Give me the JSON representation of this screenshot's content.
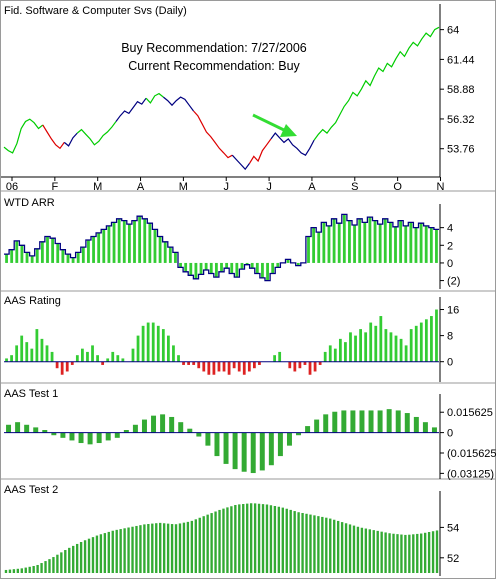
{
  "chart_data": [
    {
      "type": "line",
      "title": "Fid. Software & Computer Svs (Daily)",
      "annotations": [
        "Buy Recommendation: 7/27/2006",
        "Current Recommendation: Buy"
      ],
      "x_ticks": [
        "06",
        "F",
        "M",
        "A",
        "M",
        "J",
        "J",
        "A",
        "S",
        "O",
        "N"
      ],
      "y_ticks": [
        "64",
        "61.44",
        "58.88",
        "56.32",
        "53.76"
      ],
      "ylim": [
        51.5,
        65
      ],
      "series_colors": {
        "buy": "#00cc00",
        "sell": "#dd0000",
        "neutral": "#000080"
      },
      "series": [
        {
          "name": "",
          "values": [
            53.9,
            53.6,
            53.4,
            54.2,
            55.5,
            56.1,
            56.3,
            56.0,
            55.5,
            55.8,
            55.2,
            54.6,
            54.1,
            53.8,
            54.3,
            54.0,
            54.7,
            55.1,
            55.4,
            55.0,
            54.6,
            54.1,
            54.4,
            54.9,
            55.2,
            55.6,
            56.1,
            56.6,
            57.0,
            56.8,
            57.3,
            57.8,
            57.6,
            58.1,
            57.7,
            58.3,
            58.5,
            58.2,
            57.9,
            57.5,
            57.9,
            58.2,
            58.0,
            57.5,
            57.0,
            56.6,
            55.9,
            55.2,
            54.8,
            54.3,
            53.8,
            53.4,
            53.0,
            53.2,
            52.8,
            52.4,
            52.0,
            52.5,
            53.1,
            52.7,
            53.6,
            54.1,
            54.6,
            55.1,
            54.7,
            54.3,
            54.6,
            54.1,
            53.8,
            53.4,
            53.2,
            53.8,
            54.5,
            55.0,
            55.4,
            55.1,
            55.6,
            56.0,
            56.7,
            57.4,
            57.9,
            58.6,
            58.3,
            58.9,
            59.6,
            59.2,
            60.0,
            60.7,
            60.4,
            61.1,
            60.8,
            61.5,
            62.1,
            61.7,
            62.4,
            62.9,
            62.6,
            63.2,
            63.7,
            63.4,
            64.0,
            64.2
          ]
        }
      ]
    },
    {
      "type": "bar",
      "title": "WTD ARR",
      "y_ticks": [
        "4",
        "2",
        "0",
        "(2)"
      ],
      "ylim": [
        -2.5,
        6
      ],
      "values": [
        1.0,
        1.5,
        2.5,
        2.0,
        1.2,
        0.8,
        1.6,
        2.4,
        3.0,
        2.8,
        2.2,
        1.5,
        1.0,
        0.6,
        1.2,
        1.8,
        2.6,
        3.0,
        3.4,
        3.8,
        4.2,
        4.6,
        5.0,
        4.8,
        4.4,
        4.8,
        5.3,
        5.0,
        4.5,
        3.8,
        3.0,
        2.4,
        1.8,
        1.2,
        -0.5,
        -1.0,
        -1.4,
        -1.8,
        -1.3,
        -0.8,
        -1.2,
        -1.6,
        -1.0,
        -0.6,
        -1.2,
        -1.6,
        -0.7,
        -0.2,
        -0.6,
        -1.2,
        -1.7,
        -2.0,
        -1.2,
        -0.5,
        0.0,
        0.4,
        0.0,
        -0.3,
        0.0,
        3.0,
        4.0,
        3.5,
        4.6,
        4.2,
        5.0,
        4.5,
        5.5,
        4.8,
        4.3,
        5.0,
        4.6,
        5.2,
        4.8,
        4.4,
        5.0,
        4.6,
        4.1,
        4.8,
        4.2,
        4.6,
        4.0,
        4.5,
        4.2,
        4.0,
        3.8
      ]
    },
    {
      "type": "bar",
      "title": "AAS Rating",
      "y_ticks": [
        "16",
        "8",
        "0"
      ],
      "ylim": [
        -5,
        18
      ],
      "values": [
        1,
        2,
        5,
        8,
        6,
        4,
        10,
        7,
        5,
        3,
        -2,
        -4,
        -3,
        -1,
        2,
        4,
        3,
        5,
        2,
        -1,
        1,
        3,
        2,
        1,
        0,
        4,
        8,
        11,
        12,
        12,
        11,
        10,
        8,
        5,
        2,
        -1,
        -1,
        -1,
        -2,
        -3,
        -4,
        -4,
        -3,
        -3,
        -4,
        -2,
        -3,
        -4,
        -3,
        -2,
        -1,
        0,
        0,
        2,
        3,
        0,
        -2,
        -3,
        -2,
        -1,
        -4,
        -3,
        -1,
        3,
        5,
        4,
        7,
        6,
        9,
        8,
        10,
        9,
        12,
        11,
        14,
        10,
        9,
        8,
        7,
        5,
        10,
        11,
        12,
        13,
        14,
        16
      ]
    },
    {
      "type": "bar",
      "title": "AAS Test 1",
      "y_ticks": [
        "0.015625",
        "0",
        "(0.015625)",
        "(0.03125)"
      ],
      "ylim": [
        -0.0325,
        0.025
      ],
      "values": [
        0.006,
        0.008,
        0.006,
        0.004,
        0.002,
        -0.002,
        -0.004,
        -0.006,
        -0.008,
        -0.009,
        -0.008,
        -0.006,
        -0.004,
        0.002,
        0.006,
        0.01,
        0.013,
        0.014,
        0.012,
        0.008,
        0.003,
        -0.003,
        -0.01,
        -0.018,
        -0.024,
        -0.028,
        -0.03,
        -0.031,
        -0.029,
        -0.025,
        -0.018,
        -0.01,
        -0.002,
        0.005,
        0.01,
        0.014,
        0.016,
        0.017,
        0.017,
        0.017,
        0.017,
        0.017,
        0.018,
        0.017,
        0.015,
        0.012,
        0.008,
        0.004
      ]
    },
    {
      "type": "area",
      "title": "AAS Test 2",
      "y_ticks": [
        "54",
        "52"
      ],
      "ylim": [
        51.0,
        56.0
      ],
      "values": [
        51.2,
        51.3,
        51.5,
        52.0,
        52.6,
        53.1,
        53.5,
        53.8,
        54.0,
        54.2,
        54.3,
        54.2,
        54.4,
        54.8,
        55.2,
        55.5,
        55.6,
        55.5,
        55.3,
        55.0,
        54.8,
        54.6,
        54.3,
        54.0,
        53.8,
        53.6,
        53.5,
        53.6,
        53.8
      ]
    }
  ]
}
